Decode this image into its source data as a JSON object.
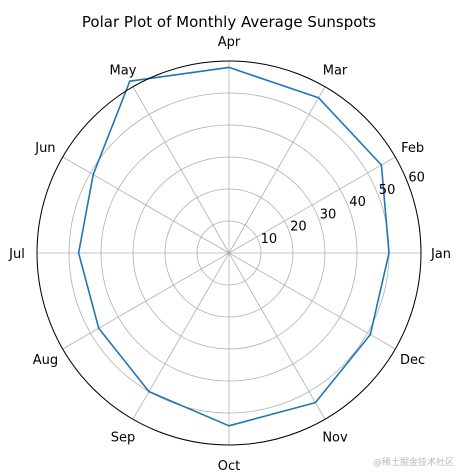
{
  "chart_data": {
    "type": "line",
    "polar": true,
    "title": "Polar Plot of Monthly Average Sunspots",
    "categories": [
      "Jan",
      "Feb",
      "Mar",
      "Apr",
      "May",
      "Jun",
      "Jul",
      "Aug",
      "Sep",
      "Oct",
      "Nov",
      "Dec"
    ],
    "series": [
      {
        "values": [
          50,
          55,
          56,
          58,
          62,
          49,
          47,
          47,
          50,
          54,
          54,
          51
        ]
      }
    ],
    "r_ticks": [
      10,
      20,
      30,
      40,
      50,
      60
    ],
    "rlim": [
      0,
      60
    ],
    "grid": true,
    "line_color": "#1f77b4"
  },
  "watermark": "@稀土掘金技术社区"
}
